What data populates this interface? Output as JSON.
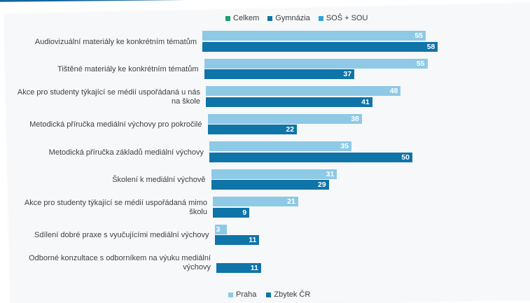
{
  "legend_top": [
    {
      "label": "Celkem",
      "color": "#1aa06b"
    },
    {
      "label": "Gymnázia",
      "color": "#0f74a8"
    },
    {
      "label": "SOŠ + SOU",
      "color": "#2ea3d6"
    }
  ],
  "chart_data": {
    "type": "bar",
    "orientation": "horizontal",
    "categories": [
      "Audiovizuální materiály ke konkrétním tématům",
      "Tištěné materiály ke konkrétním tématům",
      "Akce pro studenty týkající se médií uspořádaná u nás na škole",
      "Metodická příručka mediální výchovy pro pokročilé",
      "Metodická příručka základů mediální výchovy",
      "Školení k mediální výchově",
      "Akce pro studenty týkající se médií uspořádaná mimo školu",
      "Sdílení dobré praxe s vyučujícími mediální výchovy",
      "Odborné konzultace s odborníkem na výuku mediální výchovy"
    ],
    "series": [
      {
        "name": "Praha",
        "color": "#8ec9e6",
        "values": [
          55,
          55,
          48,
          38,
          35,
          31,
          21,
          3,
          null
        ]
      },
      {
        "name": "Zbytek ČR",
        "color": "#0f74a8",
        "values": [
          58,
          37,
          41,
          22,
          50,
          29,
          9,
          11,
          11
        ]
      }
    ],
    "legend": "bottom",
    "grid": false
  }
}
